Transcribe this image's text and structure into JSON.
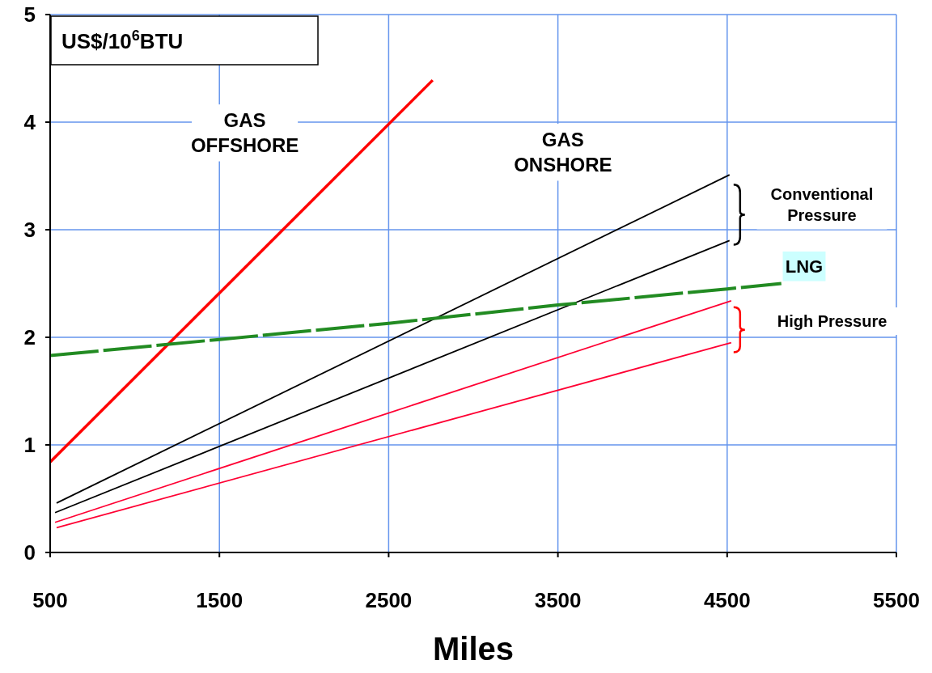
{
  "chart_data": {
    "type": "line",
    "ylabel": "US$/10$^{6}$BTU",
    "xlabel": "Miles",
    "xlim": [
      500,
      5500
    ],
    "xticks": [
      500,
      1500,
      2500,
      3500,
      4500,
      5500
    ],
    "ylim": [
      0,
      5
    ],
    "yticks": [
      0,
      1,
      2,
      3,
      4,
      5
    ],
    "grid": true,
    "marker": "none",
    "legend": false,
    "series": [
      {
        "color": "#ff0000",
        "x": [
          500,
          2760
        ],
        "values": [
          0.84,
          4.39
        ]
      },
      {
        "color": "#000000",
        "x": [
          538,
          4514
        ],
        "values": [
          0.46,
          3.51
        ]
      },
      {
        "color": "#000000",
        "x": [
          529,
          4514
        ],
        "values": [
          0.37,
          2.9
        ]
      },
      {
        "color": "#ff0033",
        "x": [
          529,
          4524
        ],
        "values": [
          0.28,
          2.34
        ]
      },
      {
        "color": "#ff0033",
        "x": [
          538,
          4524
        ],
        "values": [
          0.23,
          1.95
        ]
      },
      {
        "color": "#228b22",
        "line_style": "dashed",
        "x": [
          500,
          1500,
          2500,
          3500,
          4500,
          4820
        ],
        "values": [
          1.83,
          1.98,
          2.13,
          2.3,
          2.45,
          2.5
        ]
      }
    ],
    "annotations": [
      "GAS\nOFFSHORE",
      "GAS\nONSHORE",
      "Conventional\nPressure",
      "LNG",
      "High Pressure"
    ]
  }
}
